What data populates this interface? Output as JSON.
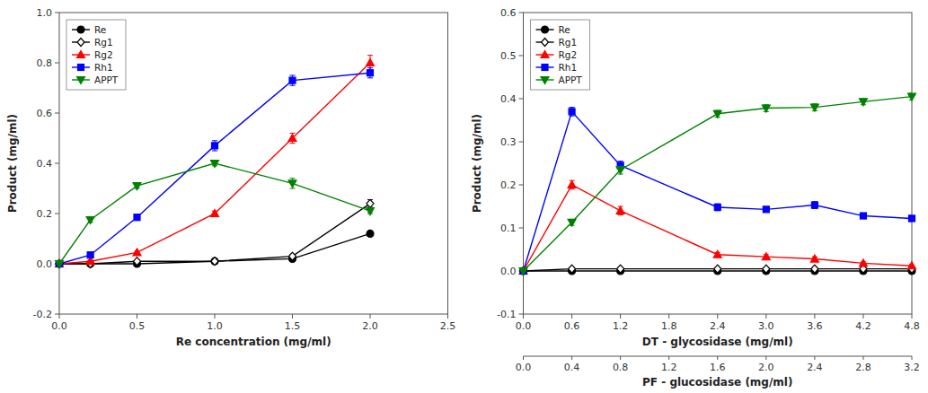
{
  "chart_data": [
    {
      "type": "line",
      "xlabel": "Re concentration (mg/ml)",
      "ylabel": "Product (mg/ml)",
      "xlim": [
        0,
        2.5
      ],
      "ylim": [
        -0.2,
        1.0
      ],
      "xticks": [
        {
          "value": 0.0,
          "label": "0.0"
        },
        0.5,
        {
          "value": 1.0,
          "label": "1.0"
        },
        1.5,
        {
          "value": 2.0,
          "label": "2.0"
        },
        2.5
      ],
      "yticks": [
        -0.2,
        {
          "value": 0.0,
          "label": "0.0"
        },
        0.2,
        0.4,
        0.6,
        0.8,
        {
          "value": 1.0,
          "label": "1.0"
        }
      ],
      "grid": false,
      "legend": "upper left",
      "series": [
        {
          "name": "Re",
          "color": "black",
          "marker": "circle",
          "x": [
            0.0,
            0.2,
            0.5,
            1.0,
            1.5,
            2.0
          ],
          "values": [
            0.0,
            0.0,
            0.0,
            0.01,
            0.02,
            0.12
          ],
          "errors": [
            0.0,
            0.005,
            0.005,
            0.005,
            0.005,
            0.01
          ]
        },
        {
          "name": "Rg1",
          "color": "black",
          "marker": "diamond-open",
          "x": [
            0.0,
            0.2,
            0.5,
            1.0,
            1.5,
            2.0
          ],
          "values": [
            0.0,
            0.0,
            0.01,
            0.01,
            0.03,
            0.24
          ],
          "errors": [
            0.0,
            0.005,
            0.005,
            0.005,
            0.008,
            0.015
          ]
        },
        {
          "name": "Rg2",
          "color": "red",
          "marker": "triangle-up",
          "x": [
            0.0,
            0.2,
            0.5,
            1.0,
            1.5,
            2.0
          ],
          "values": [
            0.0,
            0.01,
            0.045,
            0.2,
            0.5,
            0.8
          ],
          "errors": [
            0.0,
            0.005,
            0.005,
            0.01,
            0.02,
            0.03
          ]
        },
        {
          "name": "Rh1",
          "color": "blue",
          "marker": "square",
          "x": [
            0.0,
            0.2,
            0.5,
            1.0,
            1.5,
            2.0
          ],
          "values": [
            0.0,
            0.035,
            0.185,
            0.47,
            0.73,
            0.76
          ],
          "errors": [
            0.0,
            0.005,
            0.01,
            0.02,
            0.02,
            0.02
          ]
        },
        {
          "name": "APPT",
          "color": "green",
          "marker": "triangle-down",
          "x": [
            0.0,
            0.2,
            0.5,
            1.0,
            1.5,
            2.0
          ],
          "values": [
            0.0,
            0.175,
            0.31,
            0.4,
            0.32,
            0.21
          ],
          "errors": [
            0.0,
            0.01,
            0.01,
            0.01,
            0.02,
            0.01
          ]
        }
      ]
    },
    {
      "type": "line",
      "xlabel": "DT - glycosidase (mg/ml)",
      "x2label": "PF - glucosidase (mg/ml)",
      "ylabel": "Product (mg/ml)",
      "xlim": [
        0.0,
        4.8
      ],
      "x2lim": [
        0.0,
        3.2
      ],
      "ylim": [
        -0.1,
        0.6
      ],
      "xticks": [
        {
          "value": 0.0,
          "label": "0.0"
        },
        0.6,
        1.2,
        1.8,
        2.4,
        {
          "value": 3.0,
          "label": "3.0"
        },
        3.6,
        4.2,
        4.8
      ],
      "x2ticks": [
        {
          "value": 0.0,
          "label": "0.0"
        },
        0.4,
        0.8,
        1.2,
        1.6,
        {
          "value": 2.0,
          "label": "2.0"
        },
        2.4,
        2.8,
        3.2
      ],
      "yticks": [
        -0.1,
        {
          "value": 0.0,
          "label": "0.0"
        },
        0.1,
        0.2,
        0.3,
        0.4,
        0.5,
        0.6
      ],
      "grid": false,
      "legend": "upper left",
      "series": [
        {
          "name": "Re",
          "color": "black",
          "marker": "circle",
          "x": [
            0.0,
            0.6,
            1.2,
            2.4,
            3.0,
            3.6,
            4.2,
            4.8
          ],
          "values": [
            0.0,
            0.0,
            0.0,
            0.0,
            0.0,
            0.0,
            0.0,
            0.0
          ],
          "errors": [
            0.0,
            0.003,
            0.003,
            0.003,
            0.003,
            0.003,
            0.003,
            0.003
          ]
        },
        {
          "name": "Rg1",
          "color": "black",
          "marker": "diamond-open",
          "x": [
            0.0,
            0.6,
            1.2,
            2.4,
            3.0,
            3.6,
            4.2,
            4.8
          ],
          "values": [
            0.0,
            0.005,
            0.005,
            0.005,
            0.005,
            0.005,
            0.005,
            0.005
          ],
          "errors": [
            0.0,
            0.003,
            0.003,
            0.003,
            0.003,
            0.003,
            0.003,
            0.003
          ]
        },
        {
          "name": "Rg2",
          "color": "red",
          "marker": "triangle-up",
          "x": [
            0.0,
            0.6,
            1.2,
            2.4,
            3.0,
            3.6,
            4.2,
            4.8
          ],
          "values": [
            0.0,
            0.2,
            0.14,
            0.038,
            0.033,
            0.028,
            0.018,
            0.012
          ],
          "errors": [
            0.0,
            0.01,
            0.01,
            0.005,
            0.005,
            0.005,
            0.003,
            0.003
          ]
        },
        {
          "name": "Rh1",
          "color": "blue",
          "marker": "square",
          "x": [
            0.0,
            0.6,
            1.2,
            2.4,
            3.0,
            3.6,
            4.2,
            4.8
          ],
          "values": [
            0.0,
            0.37,
            0.245,
            0.148,
            0.143,
            0.153,
            0.128,
            0.122
          ],
          "errors": [
            0.0,
            0.01,
            0.01,
            0.008,
            0.005,
            0.008,
            0.005,
            0.007
          ]
        },
        {
          "name": "APPT",
          "color": "green",
          "marker": "triangle-down",
          "x": [
            0.0,
            0.6,
            1.2,
            2.4,
            3.0,
            3.6,
            4.2,
            4.8
          ],
          "values": [
            0.0,
            0.113,
            0.235,
            0.365,
            0.378,
            0.38,
            0.393,
            0.405
          ],
          "errors": [
            0.0,
            0.007,
            0.01,
            0.008,
            0.008,
            0.008,
            0.007,
            0.008
          ]
        }
      ]
    }
  ]
}
